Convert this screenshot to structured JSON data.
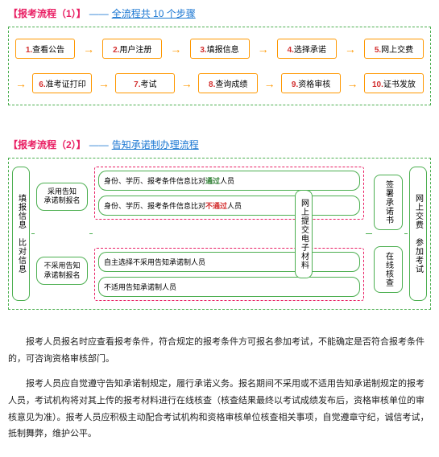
{
  "section1": {
    "bracket": "【报考流程（1）】",
    "dash": "——",
    "subtitle": "全流程共 10 个步骤"
  },
  "steps": [
    {
      "n": "1.",
      "t": "查看公告"
    },
    {
      "n": "2.",
      "t": "用户注册"
    },
    {
      "n": "3.",
      "t": "填报信息"
    },
    {
      "n": "4.",
      "t": "选择承诺"
    },
    {
      "n": "5.",
      "t": "网上交费"
    },
    {
      "n": "6.",
      "t": "准考证打印"
    },
    {
      "n": "7.",
      "t": "考试"
    },
    {
      "n": "8.",
      "t": "查询成绩"
    },
    {
      "n": "9.",
      "t": "资格审核"
    },
    {
      "n": "10.",
      "t": "证书发放"
    }
  ],
  "arrow": "→",
  "section2": {
    "bracket": "【报考流程（2）】",
    "dash": "——",
    "subtitle": "告知承诺制办理流程"
  },
  "flow2": {
    "left": "填报信息　比对信息",
    "branch1": "采用告知承诺制报名",
    "branch2": "不采用告知承诺制报名",
    "mid1": "身份、学历、报考条件信息比对",
    "mid1_pass": "通过",
    "mid1_suf": "人员",
    "mid2": "身份、学历、报考条件信息比对",
    "mid2_fail": "不通过",
    "mid2_suf": "人员",
    "mid3": "自主选择不采用告知承诺制人员",
    "mid4": "不适用告知承诺制人员",
    "center_v": "网上提交电子材料",
    "right_top": "签署承诺书",
    "right_bot": "在线核查",
    "far_right": "网上交费　参加考试"
  },
  "para1": "报考人员报名时应查看报考条件，符合规定的报考条件方可报名参加考试，不能确定是否符合报考条件的，可咨询资格审核部门。",
  "para2": "报考人员应自觉遵守告知承诺制规定，履行承诺义务。报名期间不采用或不适用告知承诺制规定的报考人员，考试机构将对其上传的报考材料进行在线核查（核查结果最终以考试成绩发布后，资格审核单位的审核意见为准）。报考人员应积极主动配合考试机构和资格审核单位核查相关事项，自觉遵章守纪，诚信考试，抵制舞弊，维护公平。",
  "colors": {
    "accent_pink": "#e91e63",
    "accent_blue": "#1976d2",
    "accent_green": "#4caf50",
    "accent_orange": "#ff9800",
    "accent_red": "#d32f2f"
  }
}
